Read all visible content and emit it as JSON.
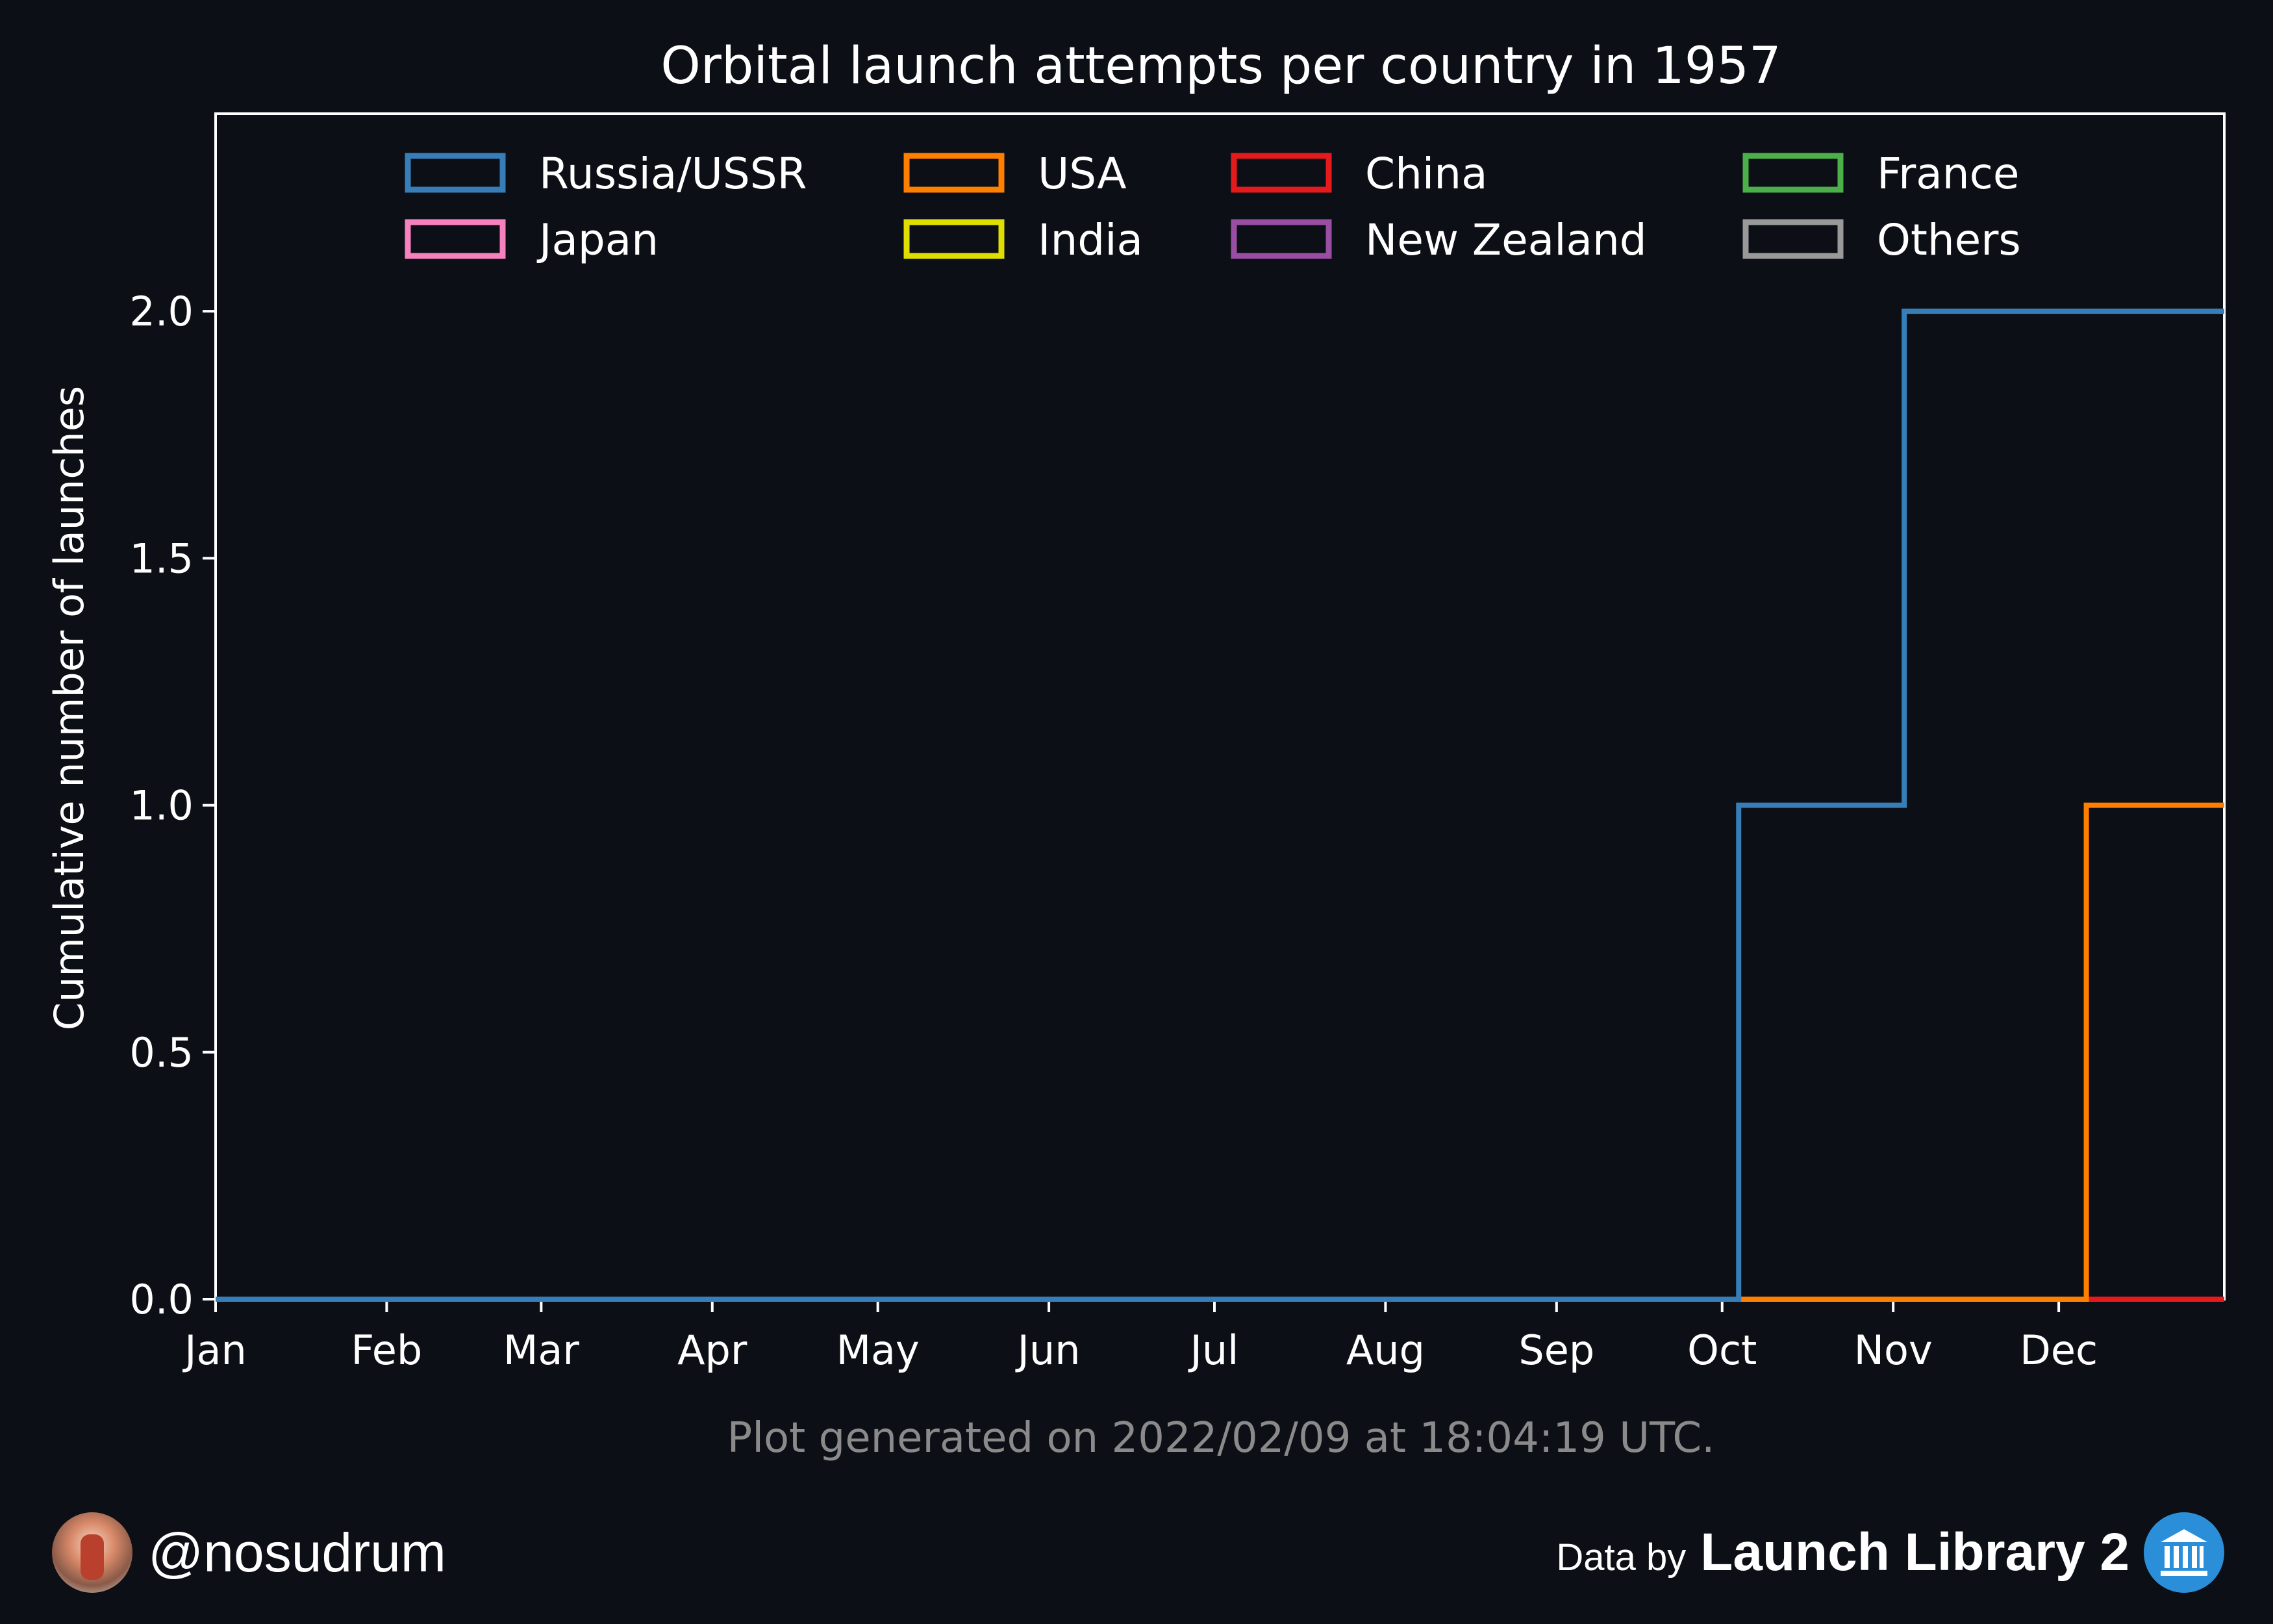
{
  "chart_data": {
    "type": "line",
    "step": "post",
    "title": "Orbital launch attempts per country in 1957",
    "xlabel": "",
    "ylabel": "Cumulative number of launches",
    "xlim": [
      "1957-01-01",
      "1957-12-31"
    ],
    "ylim": [
      0,
      2.4
    ],
    "yticks": [
      "0.0",
      "0.5",
      "1.0",
      "1.5",
      "2.0"
    ],
    "xticks": [
      {
        "label": "Jan",
        "date": "1957-01-01"
      },
      {
        "label": "Feb",
        "date": "1957-02-01"
      },
      {
        "label": "Mar",
        "date": "1957-03-01"
      },
      {
        "label": "Apr",
        "date": "1957-04-01"
      },
      {
        "label": "May",
        "date": "1957-05-01"
      },
      {
        "label": "Jun",
        "date": "1957-06-01"
      },
      {
        "label": "Jul",
        "date": "1957-07-01"
      },
      {
        "label": "Aug",
        "date": "1957-08-01"
      },
      {
        "label": "Sep",
        "date": "1957-09-01"
      },
      {
        "label": "Oct",
        "date": "1957-10-01"
      },
      {
        "label": "Nov",
        "date": "1957-11-01"
      },
      {
        "label": "Dec",
        "date": "1957-12-01"
      }
    ],
    "grid": false,
    "legend_position": "top",
    "series": [
      {
        "name": "Russia/USSR",
        "color": "#377eb8",
        "points": [
          [
            "1957-01-01",
            0
          ],
          [
            "1957-10-04",
            1
          ],
          [
            "1957-11-03",
            2
          ],
          [
            "1957-12-31",
            2
          ]
        ]
      },
      {
        "name": "USA",
        "color": "#ff7f00",
        "points": [
          [
            "1957-01-01",
            0
          ],
          [
            "1957-12-06",
            1
          ],
          [
            "1957-12-31",
            1
          ]
        ]
      },
      {
        "name": "China",
        "color": "#e41a1c",
        "points": [
          [
            "1957-01-01",
            0
          ],
          [
            "1957-12-31",
            0
          ]
        ]
      },
      {
        "name": "France",
        "color": "#4daf4a",
        "points": [
          [
            "1957-01-01",
            0
          ],
          [
            "1957-12-31",
            0
          ]
        ]
      },
      {
        "name": "Japan",
        "color": "#f781bf",
        "points": [
          [
            "1957-01-01",
            0
          ],
          [
            "1957-12-31",
            0
          ]
        ]
      },
      {
        "name": "India",
        "color": "#dede00",
        "points": [
          [
            "1957-01-01",
            0
          ],
          [
            "1957-12-31",
            0
          ]
        ]
      },
      {
        "name": "New Zealand",
        "color": "#984ea3",
        "points": [
          [
            "1957-01-01",
            0
          ],
          [
            "1957-12-31",
            0
          ]
        ]
      },
      {
        "name": "Others",
        "color": "#999999",
        "points": [
          [
            "1957-01-01",
            0
          ],
          [
            "1957-12-31",
            0
          ]
        ]
      }
    ],
    "annotation": "Plot generated on 2022/02/09 at 18:04:19 UTC."
  },
  "footer": {
    "handle": "@nosudrum",
    "data_by": "Data by",
    "source": "Launch Library 2"
  },
  "icons": {
    "avatar": "astronaut-avatar-icon",
    "logo": "launch-library-logo-icon"
  },
  "colors": {
    "background": "#0c0f15",
    "axis": "#ffffff",
    "annotation": "#8a8a8a"
  }
}
